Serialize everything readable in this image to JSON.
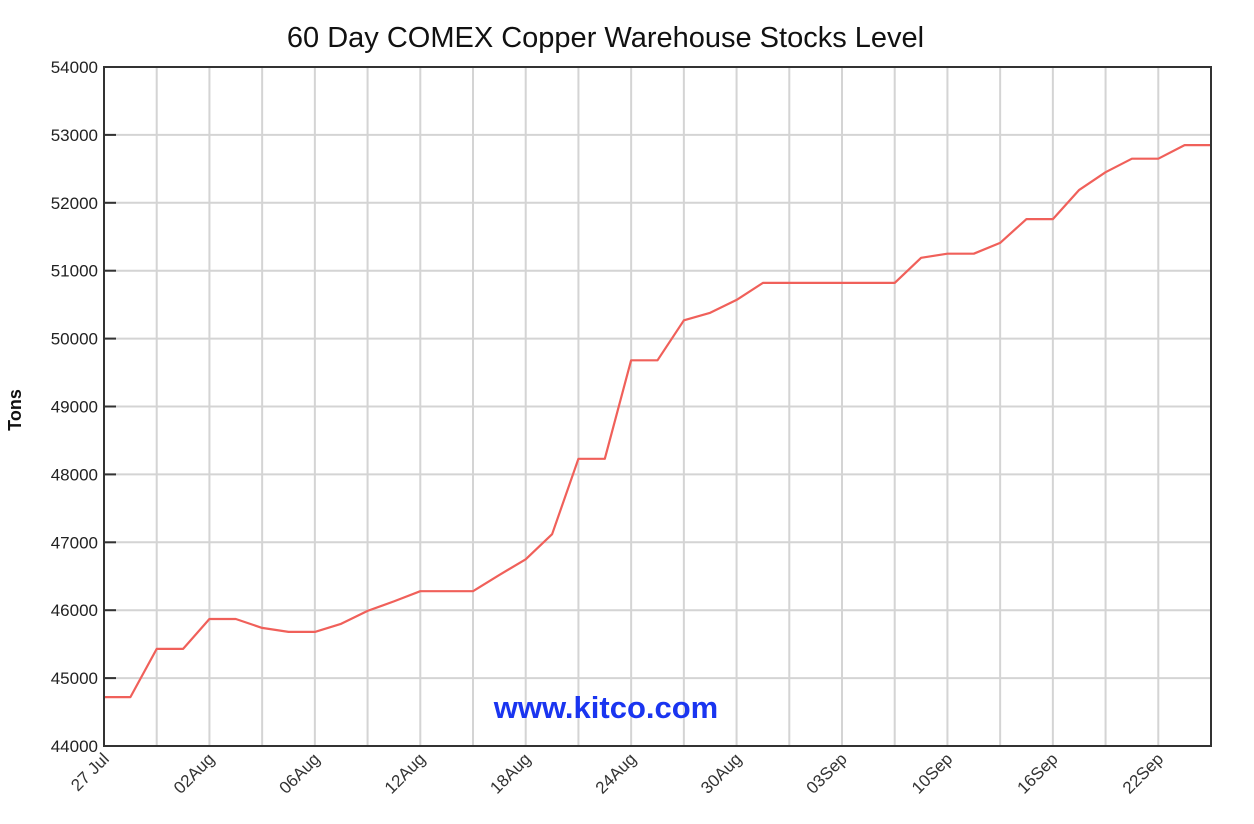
{
  "chart_data": {
    "type": "line",
    "title": "60 Day COMEX Copper Warehouse Stocks Level",
    "xlabel": "",
    "ylabel": "Tons",
    "ylim": [
      44000,
      54000
    ],
    "yticks": [
      44000,
      45000,
      46000,
      47000,
      48000,
      49000,
      50000,
      51000,
      52000,
      53000,
      54000
    ],
    "xtick_labels": [
      "27 Jul",
      "02Aug",
      "06Aug",
      "12Aug",
      "18Aug",
      "24Aug",
      "30Aug",
      "03Sep",
      "10Sep",
      "16Sep",
      "22Sep"
    ],
    "grid": true,
    "legend": null,
    "watermark": "www.kitco.com",
    "series": [
      {
        "name": "COMEX Copper Warehouse Stocks",
        "color": "#f0605a",
        "values": [
          44720,
          44720,
          45430,
          45430,
          45870,
          45870,
          45740,
          45680,
          45680,
          45800,
          45990,
          46130,
          46280,
          46280,
          46280,
          46520,
          46750,
          47120,
          48230,
          48230,
          49680,
          49680,
          50270,
          50380,
          50570,
          50820,
          50820,
          50820,
          50820,
          50820,
          50820,
          51190,
          51250,
          51250,
          51410,
          51760,
          51760,
          52190,
          52450,
          52650,
          52650,
          52850,
          52850
        ]
      }
    ]
  },
  "colors": {
    "line": "#f0605a",
    "grid": "#d4d4d4",
    "axis": "#333333",
    "watermark": "#1a35f0"
  }
}
